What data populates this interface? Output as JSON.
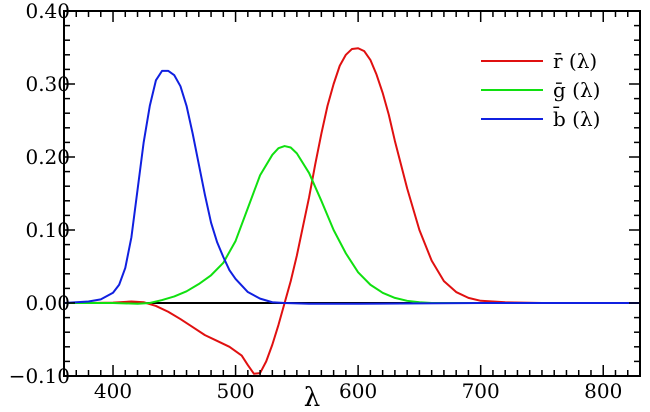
{
  "chart_data": {
    "type": "line",
    "title": "",
    "xlabel": "λ",
    "ylabel": "",
    "xlim": [
      360,
      830
    ],
    "ylim": [
      -0.1,
      0.4
    ],
    "grid": false,
    "legend_placement": "top-right",
    "x_ticks": [
      400,
      500,
      600,
      700,
      800
    ],
    "x_tick_labels": [
      "400",
      "500",
      "600",
      "700",
      "800"
    ],
    "y_ticks": [
      -0.1,
      0.0,
      0.1,
      0.2,
      0.3,
      0.4
    ],
    "y_tick_labels": [
      "−0.10",
      "0.00",
      "0.10",
      "0.20",
      "0.30",
      "0.40"
    ],
    "zero_line_color": "#000000",
    "series": [
      {
        "name": "r̄ (λ)",
        "color": "#e01010",
        "x": [
          360,
          380,
          400,
          415,
          425,
          435,
          445,
          455,
          465,
          475,
          485,
          495,
          505,
          510,
          515,
          520,
          525,
          530,
          535,
          540,
          545,
          550,
          555,
          560,
          565,
          570,
          575,
          580,
          585,
          590,
          595,
          600,
          605,
          610,
          615,
          620,
          625,
          630,
          640,
          650,
          660,
          670,
          680,
          690,
          700,
          720,
          750,
          800,
          830
        ],
        "values": [
          0.0,
          0.0,
          0.0005,
          0.002,
          0.001,
          -0.004,
          -0.012,
          -0.022,
          -0.033,
          -0.044,
          -0.052,
          -0.06,
          -0.072,
          -0.085,
          -0.097,
          -0.096,
          -0.08,
          -0.057,
          -0.03,
          -0.0,
          0.03,
          0.065,
          0.105,
          0.145,
          0.19,
          0.232,
          0.27,
          0.3,
          0.325,
          0.34,
          0.348,
          0.349,
          0.345,
          0.333,
          0.313,
          0.288,
          0.258,
          0.222,
          0.157,
          0.1,
          0.058,
          0.03,
          0.015,
          0.007,
          0.003,
          0.001,
          0.0,
          0.0,
          0.0
        ]
      },
      {
        "name": "ḡ (λ)",
        "color": "#10e010",
        "x": [
          360,
          400,
          420,
          430,
          440,
          450,
          460,
          470,
          480,
          490,
          500,
          510,
          520,
          530,
          535,
          540,
          545,
          550,
          560,
          570,
          580,
          590,
          600,
          610,
          620,
          630,
          640,
          650,
          660,
          670,
          680,
          700,
          830
        ],
        "values": [
          0.0,
          0.0,
          -0.001,
          0.0,
          0.004,
          0.009,
          0.016,
          0.026,
          0.038,
          0.055,
          0.085,
          0.13,
          0.175,
          0.203,
          0.212,
          0.215,
          0.213,
          0.205,
          0.178,
          0.14,
          0.1,
          0.068,
          0.042,
          0.025,
          0.014,
          0.007,
          0.003,
          0.001,
          0.0,
          0.0,
          0.0,
          0.0,
          0.0
        ]
      },
      {
        "name": "b̄ (λ)",
        "color": "#1020e0",
        "x": [
          360,
          380,
          390,
          400,
          405,
          410,
          415,
          420,
          425,
          430,
          435,
          440,
          445,
          450,
          455,
          460,
          465,
          470,
          475,
          480,
          485,
          490,
          495,
          500,
          510,
          520,
          530,
          540,
          560,
          600,
          700,
          830
        ],
        "values": [
          0.0,
          0.002,
          0.005,
          0.014,
          0.025,
          0.048,
          0.09,
          0.155,
          0.22,
          0.27,
          0.305,
          0.318,
          0.318,
          0.312,
          0.297,
          0.27,
          0.232,
          0.19,
          0.148,
          0.11,
          0.083,
          0.063,
          0.045,
          0.033,
          0.015,
          0.006,
          0.001,
          0.0,
          -0.001,
          -0.001,
          0.0,
          0.0
        ]
      }
    ]
  }
}
